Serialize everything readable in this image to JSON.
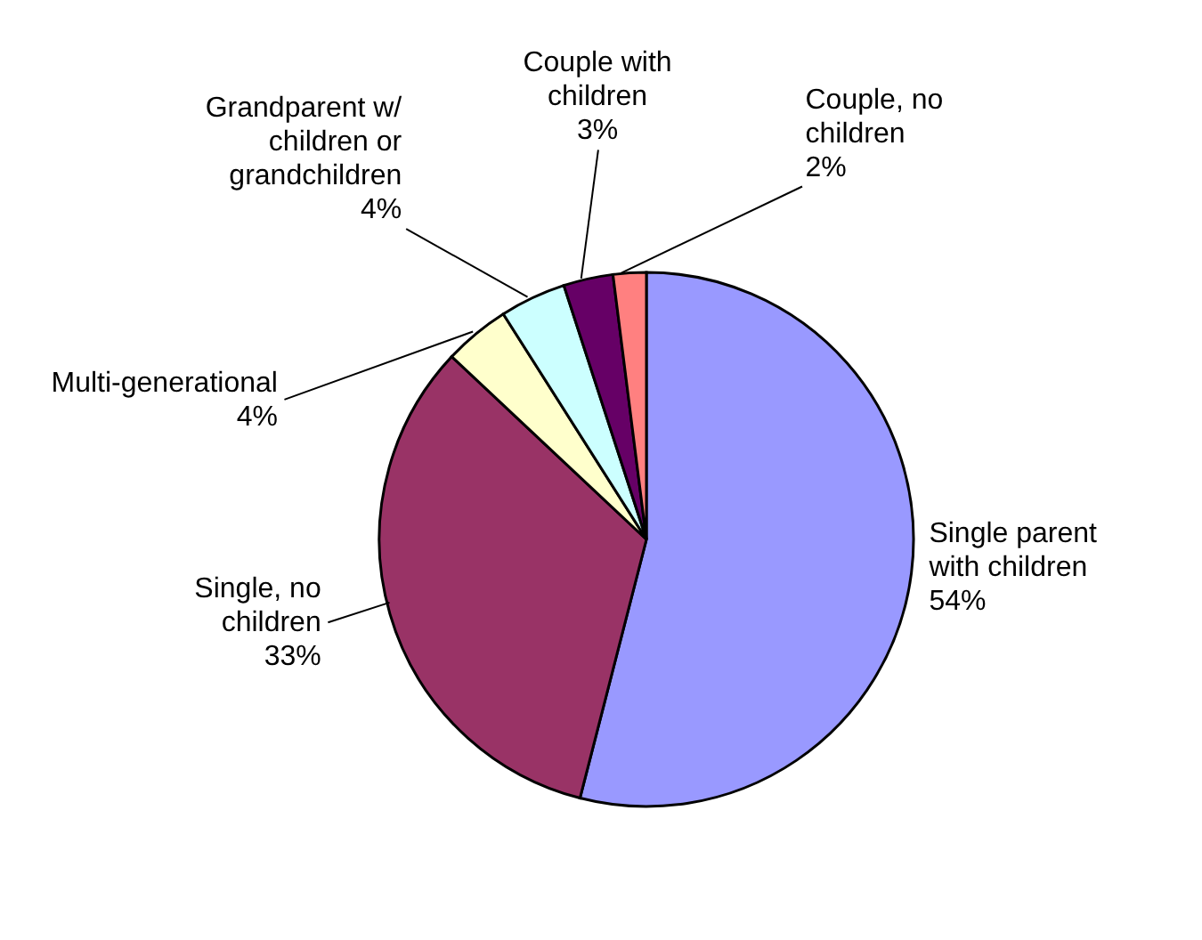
{
  "chart_data": {
    "type": "pie",
    "categories": [
      "Single parent with children",
      "Single, no children",
      "Multi-generational",
      "Grandparent w/ children or grandchildren",
      "Couple with children",
      "Couple, no children"
    ],
    "values": [
      54,
      33,
      4,
      4,
      3,
      2
    ],
    "value_labels": [
      "54%",
      "33%",
      "4%",
      "4%",
      "3%",
      "2%"
    ],
    "colors": [
      "#9999ff",
      "#993366",
      "#ffffcc",
      "#ccffff",
      "#660066",
      "#ff8080"
    ]
  }
}
